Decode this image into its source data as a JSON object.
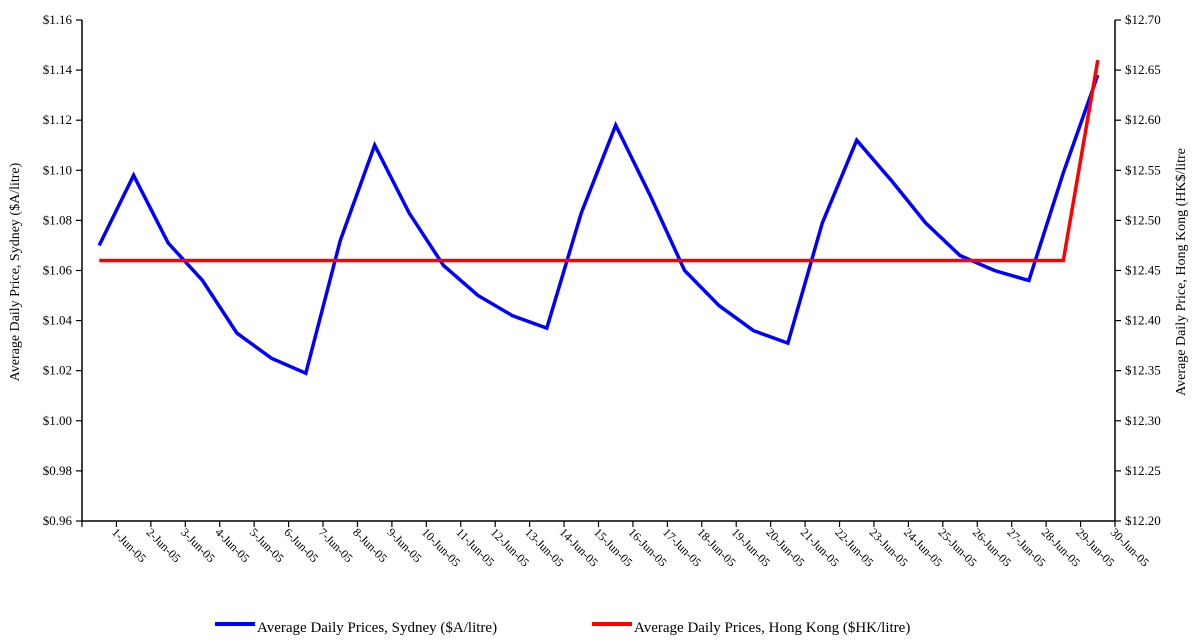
{
  "chart_data": {
    "type": "line",
    "title": "",
    "xlabel": "",
    "ylabel_left": "Average Daily Price, Sydney ($A/litre)",
    "ylabel_right": "Average Daily Price, Hong Kong (HK$/litre",
    "categories": [
      "1-Jun-05",
      "2-Jun-05",
      "3-Jun-05",
      "4-Jun-05",
      "5-Jun-05",
      "6-Jun-05",
      "7-Jun-05",
      "8-Jun-05",
      "9-Jun-05",
      "10-Jun-05",
      "11-Jun-05",
      "12-Jun-05",
      "13-Jun-05",
      "14-Jun-05",
      "15-Jun-05",
      "16-Jun-05",
      "17-Jun-05",
      "18-Jun-05",
      "19-Jun-05",
      "20-Jun-05",
      "21-Jun-05",
      "22-Jun-05",
      "23-Jun-05",
      "24-Jun-05",
      "25-Jun-05",
      "26-Jun-05",
      "27-Jun-05",
      "28-Jun-05",
      "29-Jun-05",
      "30-Jun-05"
    ],
    "left_axis": {
      "ylim": [
        0.96,
        1.16
      ],
      "tick_values": [
        0.96,
        0.98,
        1.0,
        1.02,
        1.04,
        1.06,
        1.08,
        1.1,
        1.12,
        1.14,
        1.16
      ],
      "tick_labels": [
        "$0.96",
        "$0.98",
        "$1.00",
        "$1.02",
        "$1.04",
        "$1.06",
        "$1.08",
        "$1.10",
        "$1.12",
        "$1.14",
        "$1.16"
      ]
    },
    "right_axis": {
      "ylim": [
        12.2,
        12.7
      ],
      "tick_values": [
        12.2,
        12.25,
        12.3,
        12.35,
        12.4,
        12.45,
        12.5,
        12.55,
        12.6,
        12.65,
        12.7
      ],
      "tick_labels": [
        "$12.20",
        "$12.25",
        "$12.30",
        "$12.35",
        "$12.40",
        "$12.45",
        "$12.50",
        "$12.55",
        "$12.60",
        "$12.65",
        "$12.70"
      ]
    },
    "series": [
      {
        "name": "Average Daily Prices, Sydney ($A/litre)",
        "axis": "left",
        "color": "#0000ff",
        "values": [
          1.07,
          1.098,
          1.071,
          1.056,
          1.035,
          1.025,
          1.019,
          1.072,
          1.11,
          1.083,
          1.062,
          1.05,
          1.042,
          1.037,
          1.083,
          1.118,
          1.09,
          1.06,
          1.046,
          1.036,
          1.031,
          1.079,
          1.112,
          1.096,
          1.079,
          1.066,
          1.06,
          1.056,
          1.099,
          1.138
        ]
      },
      {
        "name": "Average Daily Prices, Hong Kong ($HK/litre)",
        "axis": "right",
        "color": "#ff0000",
        "values": [
          12.46,
          12.46,
          12.46,
          12.46,
          12.46,
          12.46,
          12.46,
          12.46,
          12.46,
          12.46,
          12.46,
          12.46,
          12.46,
          12.46,
          12.46,
          12.46,
          12.46,
          12.46,
          12.46,
          12.46,
          12.46,
          12.46,
          12.46,
          12.46,
          12.46,
          12.46,
          12.46,
          12.46,
          12.46,
          12.66
        ]
      }
    ],
    "grid": false,
    "legend_position": "bottom"
  },
  "legend": {
    "sydney_label": "Average Daily Prices, Sydney ($A/litre)",
    "hongkong_label": "Average Daily Prices, Hong Kong ($HK/litre)"
  }
}
